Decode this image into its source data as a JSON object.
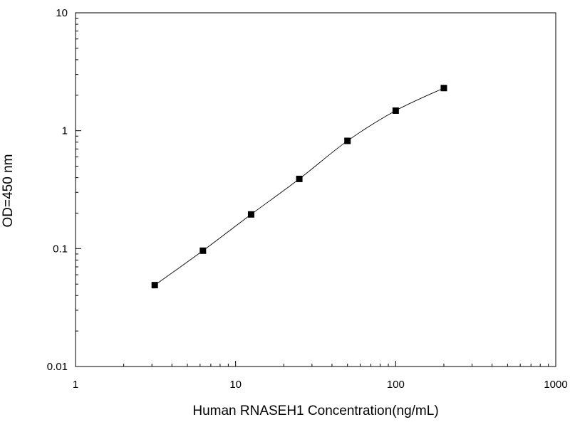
{
  "chart_data": {
    "type": "scatter",
    "title": "",
    "xlabel": "Human RNASEH1 Concentration(ng/mL)",
    "ylabel": "OD=450 nm",
    "xscale": "log",
    "yscale": "log",
    "xlim": [
      1,
      1000
    ],
    "ylim": [
      0.01,
      10
    ],
    "x_ticks": [
      1,
      10,
      100,
      1000
    ],
    "x_tick_labels": [
      "1",
      "10",
      "100",
      "1000"
    ],
    "y_ticks": [
      0.01,
      0.1,
      1,
      10
    ],
    "y_tick_labels": [
      "0.01",
      "0.1",
      "1",
      "10"
    ],
    "grid": false,
    "legend": "none",
    "fit_line": true,
    "marker": "square",
    "color": "#000000",
    "series": [
      {
        "x": [
          3.125,
          6.25,
          12.5,
          25,
          50,
          100,
          200
        ],
        "y": [
          0.049,
          0.096,
          0.195,
          0.39,
          0.82,
          1.48,
          2.3
        ]
      }
    ]
  }
}
